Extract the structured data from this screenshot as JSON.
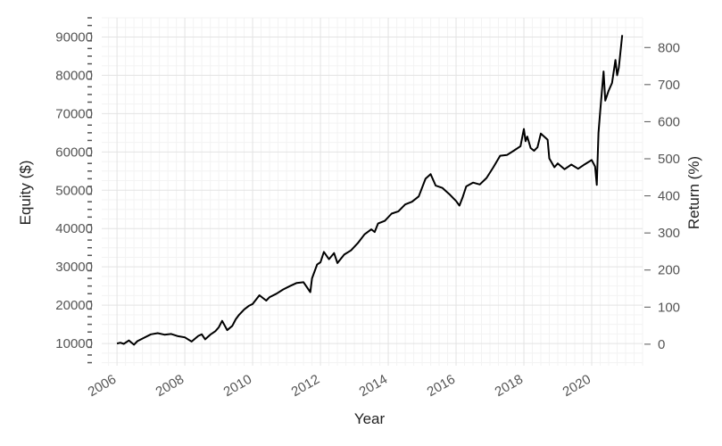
{
  "chart_data": {
    "type": "line",
    "title": "",
    "xlabel": "Year",
    "ylabel": "Equity ($)",
    "y2label": "Return (%)",
    "xlim": [
      2005.55,
      2021.5
    ],
    "ylim": [
      4200,
      95000
    ],
    "y2lim": [
      -58,
      880
    ],
    "x_ticks": [
      2006,
      2008,
      2010,
      2012,
      2014,
      2016,
      2018,
      2020
    ],
    "y_ticks": [
      10000,
      20000,
      30000,
      40000,
      50000,
      60000,
      70000,
      80000,
      90000
    ],
    "y2_ticks": [
      0,
      100,
      200,
      300,
      400,
      500,
      600,
      700,
      800
    ],
    "grid": true,
    "colors": {
      "line": "#000000",
      "grid": "#e3e3e3",
      "minor_grid": "#f3f3f3",
      "tick_text": "#555555"
    },
    "series": [
      {
        "x": [
          2006.0,
          2006.1,
          2006.2,
          2006.35,
          2006.5,
          2006.6,
          2006.8,
          2007.0,
          2007.2,
          2007.4,
          2007.6,
          2007.8,
          2008.0,
          2008.2,
          2008.4,
          2008.5,
          2008.6,
          2008.75,
          2008.9,
          2009.0,
          2009.1,
          2009.25,
          2009.4,
          2009.5,
          2009.6,
          2009.75,
          2009.9,
          2010.0,
          2010.2,
          2010.4,
          2010.5,
          2010.7,
          2010.9,
          2011.1,
          2011.3,
          2011.5,
          2011.7,
          2011.75,
          2011.9,
          2012.0,
          2012.1,
          2012.25,
          2012.4,
          2012.5,
          2012.7,
          2012.9,
          2013.1,
          2013.3,
          2013.5,
          2013.6,
          2013.7,
          2013.9,
          2014.1,
          2014.3,
          2014.5,
          2014.7,
          2014.9,
          2015.1,
          2015.25,
          2015.4,
          2015.6,
          2015.8,
          2016.0,
          2016.1,
          2016.2,
          2016.3,
          2016.5,
          2016.7,
          2016.9,
          2017.1,
          2017.3,
          2017.5,
          2017.7,
          2017.9,
          2018.0,
          2018.05,
          2018.1,
          2018.2,
          2018.3,
          2018.4,
          2018.5,
          2018.7,
          2018.75,
          2018.9,
          2019.0,
          2019.2,
          2019.4,
          2019.6,
          2019.8,
          2020.0,
          2020.1,
          2020.15,
          2020.2,
          2020.25,
          2020.35,
          2020.4,
          2020.5,
          2020.6,
          2020.7,
          2020.75,
          2020.8,
          2020.9
        ],
        "values": [
          10000,
          10200,
          9900,
          10800,
          9700,
          10600,
          11500,
          12400,
          12700,
          12300,
          12500,
          11900,
          11600,
          10500,
          12000,
          12400,
          11100,
          12300,
          13200,
          14200,
          15900,
          13500,
          14600,
          16300,
          17500,
          18900,
          19900,
          20300,
          22600,
          21200,
          22100,
          23000,
          24100,
          25000,
          25800,
          26000,
          23400,
          27000,
          30600,
          31200,
          33900,
          32000,
          33600,
          31000,
          33200,
          34300,
          36200,
          38500,
          39800,
          39100,
          41300,
          42000,
          43900,
          44500,
          46300,
          47000,
          48400,
          53000,
          54200,
          51200,
          50600,
          49000,
          47200,
          46000,
          48300,
          51000,
          52000,
          51500,
          53200,
          56000,
          59000,
          59200,
          60300,
          61500,
          66000,
          62800,
          64000,
          61000,
          60300,
          61200,
          64800,
          63200,
          58300,
          56000,
          57000,
          55500,
          56700,
          55600,
          56800,
          57900,
          56200,
          51400,
          65000,
          70500,
          81000,
          73400,
          76000,
          78000,
          84000,
          80000,
          82000,
          90500
        ]
      }
    ]
  }
}
